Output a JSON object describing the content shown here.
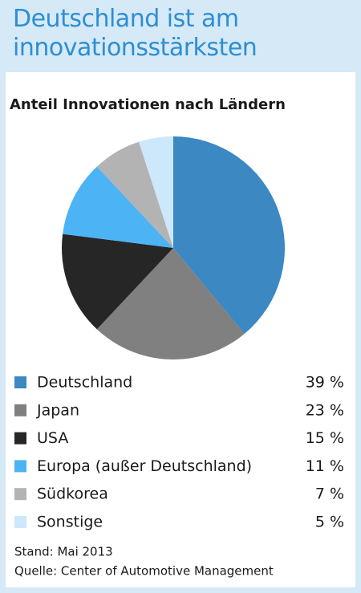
{
  "chart_data": {
    "type": "pie",
    "title": "Deutschland ist am innovationsstärksten",
    "subtitle": "Anteil Innovationen nach Ländern",
    "categories": [
      "Deutschland",
      "Japan",
      "USA",
      "Europa (außer Deutschland)",
      "Südkorea",
      "Sonstige"
    ],
    "values": [
      39,
      23,
      15,
      11,
      7,
      5
    ],
    "value_labels": [
      "39 %",
      "23 %",
      "15 %",
      "11 %",
      "7 %",
      "5 %"
    ],
    "colors": [
      "#3b88c2",
      "#808080",
      "#262626",
      "#4cb3f4",
      "#b3b3b3",
      "#cde7fb"
    ],
    "notes": [
      "Stand: Mai 2013",
      "Quelle: Center of Automotive Management"
    ]
  }
}
